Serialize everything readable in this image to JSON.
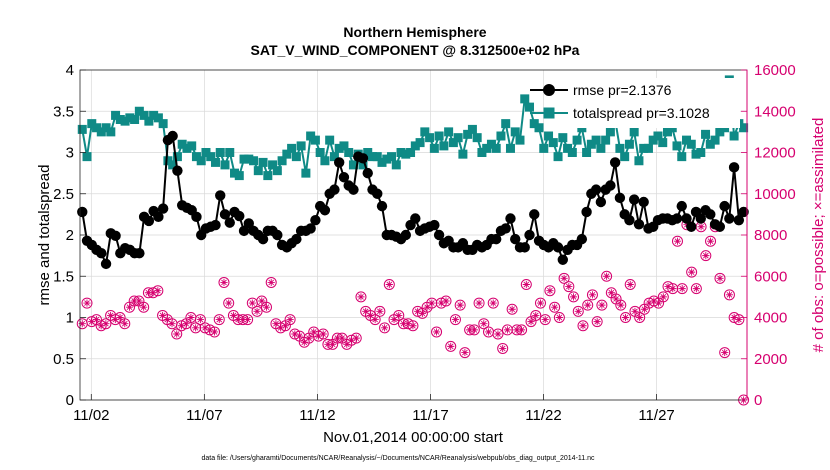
{
  "chart_data": {
    "type": "line",
    "title": "Northern Hemisphere",
    "subtitle": "SAT_V_WIND_COMPONENT @ 8.312500e+02 hPa",
    "xlabel": "Nov.01,2014 00:00:00 start",
    "ylabel_left": "rmse and totalspread",
    "ylabel_right": "# of obs: o=possible; ×=assimilated",
    "x_ticks": [
      "11/02",
      "11/07",
      "11/12",
      "11/17",
      "11/22",
      "11/27"
    ],
    "x_tick_days": [
      1,
      6,
      11,
      16,
      21,
      26
    ],
    "xlim": [
      0.5,
      30.0
    ],
    "ylim_left": [
      0,
      4
    ],
    "y_ticks_left": [
      "0",
      "0.5",
      "1",
      "1.5",
      "2",
      "2.5",
      "3",
      "3.5",
      "4"
    ],
    "ylim_right": [
      0,
      16000
    ],
    "y_ticks_right": [
      "0",
      "2000",
      "4000",
      "6000",
      "8000",
      "10000",
      "12000",
      "14000",
      "16000"
    ],
    "footnote": "data file: /Users/gharamti/Documents/NCAR/Reanalysis/~/Documents/NCAR/Reanalysis/webpub/obs_diag_output_2014-11.nc",
    "legend_position": "top-right",
    "colors": {
      "rmse": "#000000",
      "totalspread": "#0f8a86",
      "obs": "#d6006f"
    },
    "series": [
      {
        "name": "rmse",
        "legend_label": "rmse pr=2.1376",
        "values": [
          2.28,
          1.93,
          1.88,
          1.82,
          1.78,
          1.65,
          2.02,
          1.99,
          1.78,
          1.84,
          1.82,
          1.78,
          1.78,
          2.22,
          2.17,
          2.29,
          2.22,
          2.32,
          3.15,
          3.2,
          2.78,
          2.36,
          2.33,
          2.3,
          2.22,
          2.0,
          2.08,
          2.1,
          2.12,
          2.48,
          2.25,
          2.15,
          2.28,
          2.23,
          2.05,
          2.14,
          2.05,
          2.0,
          1.95,
          2.05,
          2.05,
          2.0,
          1.88,
          1.85,
          1.9,
          1.95,
          2.05,
          2.05,
          2.08,
          2.18,
          2.35,
          2.3,
          2.5,
          2.55,
          2.88,
          2.7,
          2.6,
          2.55,
          2.95,
          2.93,
          2.75,
          2.55,
          2.5,
          2.35,
          2.0,
          2.0,
          1.98,
          1.95,
          2.0,
          2.12,
          2.2,
          2.05,
          2.08,
          2.1,
          2.12,
          2.0,
          1.9,
          1.93,
          1.85,
          1.85,
          1.9,
          1.82,
          1.82,
          1.88,
          1.85,
          1.88,
          1.95,
          1.95,
          2.05,
          2.08,
          2.2,
          1.95,
          1.85,
          1.85,
          2.0,
          2.25,
          1.93,
          1.88,
          1.85,
          1.9,
          1.85,
          1.7,
          1.82,
          1.88,
          1.88,
          1.95,
          2.28,
          2.5,
          2.55,
          2.4,
          2.55,
          2.6,
          2.88,
          2.45,
          2.25,
          2.18,
          2.43,
          2.13,
          2.4,
          2.08,
          2.1,
          2.18,
          2.2,
          2.2,
          2.18,
          2.2,
          2.35,
          2.2,
          2.1,
          2.28,
          2.2,
          2.3,
          2.25,
          2.13,
          2.1,
          2.35,
          2.2,
          2.82,
          2.18,
          2.28
        ]
      },
      {
        "name": "totalspread",
        "legend_label": "totalspread pr=3.1028",
        "values": [
          3.28,
          2.95,
          3.35,
          3.3,
          3.25,
          3.3,
          3.25,
          3.45,
          3.4,
          3.38,
          3.42,
          3.4,
          3.5,
          3.45,
          3.38,
          3.45,
          3.42,
          3.35,
          2.9,
          2.85,
          2.95,
          3.1,
          3.05,
          3.08,
          2.95,
          2.9,
          3.0,
          2.95,
          2.88,
          3.0,
          2.85,
          3.0,
          2.75,
          2.72,
          2.92,
          2.92,
          2.9,
          2.78,
          2.88,
          2.72,
          2.85,
          2.78,
          2.9,
          2.98,
          3.05,
          2.95,
          3.08,
          2.75,
          3.2,
          3.15,
          3.0,
          2.9,
          3.15,
          2.95,
          3.05,
          3.08,
          3.0,
          2.85,
          2.98,
          2.85,
          3.0,
          2.95,
          2.95,
          2.88,
          2.92,
          2.95,
          2.85,
          3.0,
          2.98,
          3.0,
          3.08,
          3.12,
          3.25,
          3.18,
          3.05,
          3.2,
          3.08,
          3.25,
          3.12,
          3.18,
          2.98,
          3.22,
          3.28,
          3.18,
          3.0,
          3.05,
          3.1,
          3.05,
          3.2,
          3.35,
          3.05,
          3.25,
          3.15,
          3.65,
          3.55,
          3.35,
          3.3,
          3.05,
          3.2,
          3.12,
          2.95,
          3.18,
          3.05,
          3.0,
          3.15,
          3.3,
          3.0,
          3.1,
          3.15,
          3.05,
          3.15,
          3.25,
          3.4,
          3.05,
          2.95,
          3.1,
          3.25,
          2.9,
          3.05,
          3.05,
          3.15,
          3.2,
          3.12,
          3.25,
          3.3,
          3.08,
          2.95,
          3.15,
          3.1,
          2.98,
          3.0,
          3.22,
          3.1,
          3.15,
          3.25,
          3.3,
          3.88,
          3.2,
          3.35,
          3.3
        ]
      },
      {
        "name": "obs_possible",
        "legend_label": "",
        "values": [
          3700,
          4700,
          3800,
          3900,
          3600,
          3700,
          4100,
          3900,
          4000,
          3700,
          4500,
          4800,
          4800,
          4500,
          5200,
          5200,
          5300,
          4100,
          3900,
          3700,
          3200,
          3600,
          3700,
          4000,
          3500,
          3900,
          3500,
          3400,
          3300,
          3900,
          5700,
          4700,
          4100,
          3900,
          3900,
          3900,
          4700,
          4300,
          4800,
          4500,
          5700,
          3700,
          3500,
          3600,
          3900,
          3200,
          3100,
          2800,
          3000,
          3300,
          3100,
          3200,
          2700,
          2700,
          3000,
          3000,
          2700,
          2900,
          3000,
          5000,
          4300,
          4100,
          3900,
          4300,
          3500,
          5600,
          3900,
          4100,
          3700,
          3700,
          3600,
          4300,
          4200,
          4500,
          4700,
          3300,
          4700,
          4800,
          2600,
          3900,
          4600,
          2300,
          3400,
          3400,
          4700,
          3700,
          3300,
          4700,
          3200,
          2500,
          3400,
          4400,
          3400,
          3400,
          5600,
          3800,
          4100,
          4700,
          3900,
          5300,
          4500,
          4000,
          5900,
          5500,
          5000,
          4300,
          3600,
          4600,
          5100,
          3800,
          4600,
          6000,
          5200,
          4900,
          4600,
          4000,
          5600,
          4300,
          4000,
          4400,
          4700,
          4800,
          4700,
          5000,
          5500,
          5400,
          7700,
          5400,
          8500,
          6200,
          5400,
          8400,
          7000,
          7700,
          8400,
          5900,
          2300,
          5100,
          4000,
          3900,
          0
        ]
      }
    ]
  }
}
